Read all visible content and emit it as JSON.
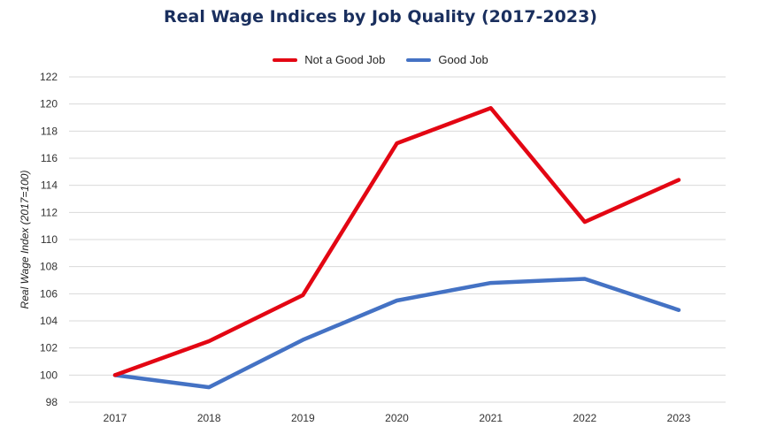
{
  "chart_data": {
    "type": "line",
    "title": "Real Wage Indices by Job Quality (2017-2023)",
    "xlabel": "",
    "ylabel": "Real Wage Index (2017=100)",
    "categories": [
      "2017",
      "2018",
      "2019",
      "2020",
      "2021",
      "2022",
      "2023"
    ],
    "ylim": [
      98,
      122
    ],
    "yticks": [
      98,
      100,
      102,
      104,
      106,
      108,
      110,
      112,
      114,
      116,
      118,
      120,
      122
    ],
    "grid": true,
    "legend_position": "top-center",
    "series": [
      {
        "name": "Not a Good Job",
        "color": "#e30613",
        "values": [
          100,
          102.5,
          105.9,
          117.1,
          119.7,
          111.3,
          114.4
        ]
      },
      {
        "name": "Good Job",
        "color": "#4472c4",
        "values": [
          100,
          99.1,
          102.6,
          105.5,
          106.8,
          107.1,
          104.8
        ]
      }
    ]
  }
}
